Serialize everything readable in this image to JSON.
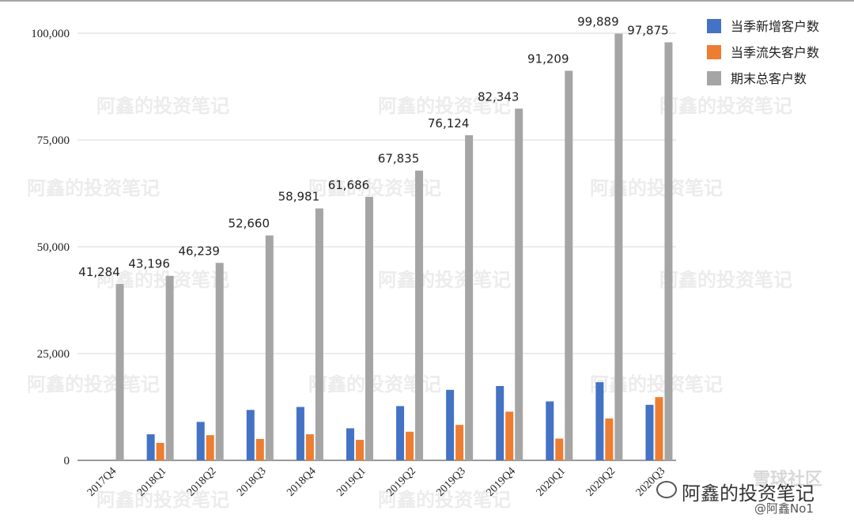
{
  "chart_data": {
    "type": "bar",
    "categories": [
      "2017Q4",
      "2018Q1",
      "2018Q2",
      "2018Q3",
      "2018Q4",
      "2019Q1",
      "2019Q2",
      "2019Q3",
      "2019Q4",
      "2020Q1",
      "2020Q2",
      "2020Q3"
    ],
    "series": [
      {
        "name": "当季新增客户数",
        "color": "#4472c4",
        "values": [
          0,
          6100,
          9000,
          11800,
          12500,
          7500,
          12700,
          16500,
          17400,
          13800,
          18300,
          13000
        ]
      },
      {
        "name": "当季流失客户数",
        "color": "#ed7d31",
        "values": [
          0,
          4100,
          5900,
          5000,
          6100,
          4800,
          6700,
          8300,
          11400,
          5100,
          9800,
          14800
        ]
      },
      {
        "name": "期末总客户数",
        "color": "#a5a5a5",
        "values": [
          41284,
          43196,
          46239,
          52660,
          58981,
          61686,
          67835,
          76124,
          82343,
          91209,
          99889,
          97875
        ],
        "labels": [
          "41,284",
          "43,196",
          "46,239",
          "52,660",
          "58,981",
          "61,686",
          "67,835",
          "76,124",
          "82,343",
          "91,209",
          "99,889",
          "97,875"
        ]
      }
    ],
    "title": "",
    "xlabel": "",
    "ylabel": "",
    "ylim": [
      0,
      100000
    ],
    "yticks": [
      0,
      25000,
      50000,
      75000,
      100000
    ],
    "ytick_labels": [
      "0",
      "25,000",
      "50,000",
      "75,000",
      "100,000"
    ],
    "grid": true,
    "legend": "right"
  },
  "watermark": {
    "text": "阿鑫的投资笔记"
  },
  "brand": {
    "community": "雪球社区",
    "account": "阿鑫的投资笔记",
    "handle": "@阿鑫No1"
  }
}
